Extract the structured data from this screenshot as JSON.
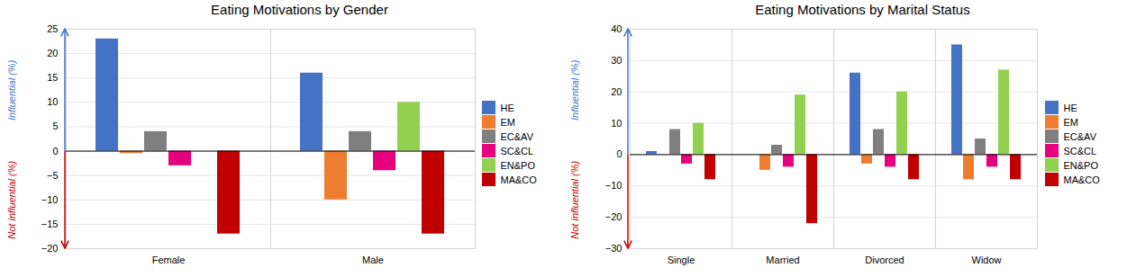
{
  "chart_data": [
    {
      "type": "bar",
      "title": "Eating Motivations by Gender",
      "categories": [
        "Female",
        "Male"
      ],
      "series": [
        {
          "name": "HE",
          "color": "#4472C4",
          "values": [
            23,
            16
          ]
        },
        {
          "name": "EM",
          "color": "#ED7D31",
          "values": [
            -0.5,
            -10
          ]
        },
        {
          "name": "EC&AV",
          "color": "#7F7F7F",
          "values": [
            4,
            4
          ]
        },
        {
          "name": "SC&CL",
          "color": "#E6007E",
          "values": [
            -3,
            -4
          ]
        },
        {
          "name": "EN&PO",
          "color": "#92D050",
          "values": [
            0,
            10
          ]
        },
        {
          "name": "MA&CO",
          "color": "#C00000",
          "values": [
            -17,
            -17
          ]
        }
      ],
      "ylim": [
        -20,
        25
      ],
      "yticks": [
        -20,
        -15,
        -10,
        -5,
        0,
        5,
        10,
        15,
        20,
        25
      ],
      "grid": true,
      "legend": "right",
      "annotations": [
        {
          "text": "Influential (%)",
          "color": "#4472C4"
        },
        {
          "text": "Not influential (%)",
          "color": "#C00000"
        }
      ]
    },
    {
      "type": "bar",
      "title": "Eating Motivations by Marital Status",
      "categories": [
        "Single",
        "Married",
        "Divorced",
        "Widow"
      ],
      "series": [
        {
          "name": "HE",
          "color": "#4472C4",
          "values": [
            1,
            0,
            26,
            35
          ]
        },
        {
          "name": "EM",
          "color": "#ED7D31",
          "values": [
            0,
            -5,
            -3,
            -8
          ]
        },
        {
          "name": "EC&AV",
          "color": "#7F7F7F",
          "values": [
            8,
            3,
            8,
            5
          ]
        },
        {
          "name": "SC&CL",
          "color": "#E6007E",
          "values": [
            -3,
            -4,
            -4,
            -4
          ]
        },
        {
          "name": "EN&PO",
          "color": "#92D050",
          "values": [
            10,
            19,
            20,
            27
          ]
        },
        {
          "name": "MA&CO",
          "color": "#C00000",
          "values": [
            -8,
            -22,
            -8,
            -8
          ]
        }
      ],
      "ylim": [
        -30,
        40
      ],
      "yticks": [
        -30,
        -20,
        -10,
        0,
        10,
        20,
        30,
        40
      ],
      "grid": true,
      "legend": "right",
      "annotations": [
        {
          "text": "Influential (%)",
          "color": "#4472C4"
        },
        {
          "text": "Not influential (%)",
          "color": "#C00000"
        }
      ]
    }
  ]
}
